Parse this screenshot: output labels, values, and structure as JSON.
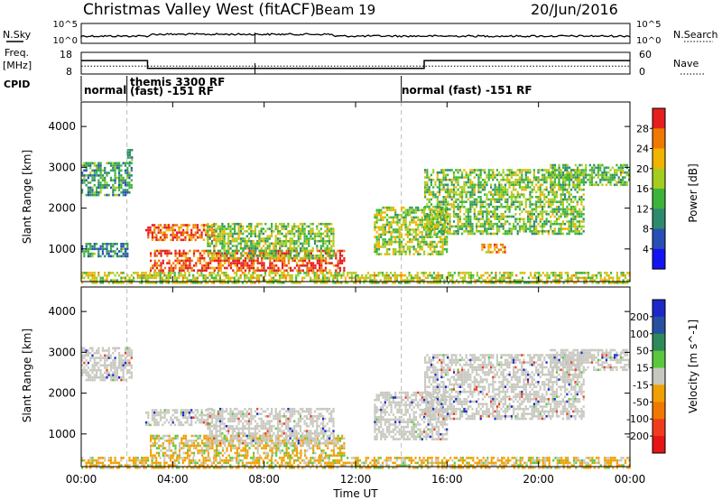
{
  "header": {
    "station": "Christmas Valley West (fitACF)",
    "beam": "Beam 19",
    "date": "20/Jun/2016"
  },
  "noise_panel": {
    "left_label": "N.Sky",
    "left_ticks": [
      "10^5",
      "10^0"
    ],
    "right_ticks": [
      "10^5",
      "10^0"
    ],
    "right_label": "N.Search"
  },
  "freq_panel": {
    "left_label_1": "Freq.",
    "left_label_2": "[MHz]",
    "left_ticks": [
      "18",
      "8"
    ],
    "right_ticks": [
      "60",
      "0"
    ],
    "right_label": "Nave",
    "freq_mhz_segments": [
      {
        "from_hour": 0.0,
        "to_hour": 2.9,
        "value": 14.2
      },
      {
        "from_hour": 2.9,
        "to_hour": 15.0,
        "value": 10.6
      },
      {
        "from_hour": 15.0,
        "to_hour": 24.0,
        "value": 14.2
      }
    ],
    "nave_dotted_level": 22
  },
  "cpid": {
    "label": "CPID",
    "segments": [
      {
        "line1": "normal",
        "line2": ""
      },
      {
        "line1": "themis 3300 RF",
        "line2": "(fast) -151 RF"
      },
      {
        "line1": "normal (fast) -151 RF",
        "line2": ""
      }
    ],
    "boundary_hours": [
      2.0,
      14.0
    ]
  },
  "chart_data": [
    {
      "type": "heatmap",
      "name": "power",
      "ylabel": "Slant Range [km]",
      "ylim": [
        200,
        4600
      ],
      "yticks": [
        "1000",
        "2000",
        "3000",
        "4000"
      ],
      "colorbar_label": "Power [dB]",
      "colorbar_ticks": [
        "4",
        "8",
        "12",
        "16",
        "20",
        "24",
        "28"
      ],
      "colorbar_colors": [
        "#1414f0",
        "#2850b4",
        "#2e8a6e",
        "#3cb43c",
        "#a5cd20",
        "#f0b400",
        "#f07800",
        "#e61e1e"
      ],
      "regions": [
        {
          "t": [
            0.0,
            2.2
          ],
          "r": [
            2350,
            3150
          ],
          "level": 0.35
        },
        {
          "t": [
            2.0,
            2.2
          ],
          "r": [
            3150,
            3500
          ],
          "level": 0.4
        },
        {
          "t": [
            2.8,
            5.8
          ],
          "r": [
            1250,
            1650
          ],
          "level": 0.9
        },
        {
          "t": [
            3.0,
            11.5
          ],
          "r": [
            500,
            1000
          ],
          "level": 0.95
        },
        {
          "t": [
            5.5,
            11.0
          ],
          "r": [
            800,
            1700
          ],
          "level": 0.5
        },
        {
          "t": [
            0.0,
            2.0
          ],
          "r": [
            850,
            1200
          ],
          "level": 0.3
        },
        {
          "t": [
            12.8,
            16.0
          ],
          "r": [
            900,
            2100
          ],
          "level": 0.55
        },
        {
          "t": [
            15.0,
            22.0
          ],
          "r": [
            1400,
            3000
          ],
          "level": 0.5
        },
        {
          "t": [
            17.5,
            18.5
          ],
          "r": [
            950,
            1150
          ],
          "level": 0.8
        },
        {
          "t": [
            20.5,
            24.0
          ],
          "r": [
            2600,
            3100
          ],
          "level": 0.45
        },
        {
          "t": [
            0.0,
            24.0
          ],
          "r": [
            200,
            450
          ],
          "level": 0.6
        }
      ]
    },
    {
      "type": "heatmap",
      "name": "velocity",
      "ylabel": "Slant Range [km]",
      "xlabel": "Time UT",
      "xlim": [
        0,
        24
      ],
      "xticks": [
        "00:00",
        "04:00",
        "08:00",
        "12:00",
        "16:00",
        "20:00",
        "00:00"
      ],
      "ylim": [
        200,
        4600
      ],
      "yticks": [
        "1000",
        "2000",
        "3000",
        "4000"
      ],
      "colorbar_label": "Velocity [m s^-1]",
      "colorbar_ticks": [
        "200",
        "100",
        "50",
        "15",
        "-15",
        "-50",
        "-100",
        "-200"
      ],
      "colorbar_colors": [
        "#1e28c8",
        "#2850a0",
        "#2e8a5a",
        "#5ac83c",
        "#c8c8c0",
        "#f0a000",
        "#f07800",
        "#f03c1e",
        "#e61414"
      ],
      "regions": [
        {
          "t": [
            0.0,
            2.2
          ],
          "r": [
            2350,
            3150
          ],
          "vel": 0
        },
        {
          "t": [
            2.8,
            5.8
          ],
          "r": [
            1250,
            1650
          ],
          "vel": 0
        },
        {
          "t": [
            3.0,
            11.5
          ],
          "r": [
            500,
            1000
          ],
          "vel": -40
        },
        {
          "t": [
            5.5,
            11.0
          ],
          "r": [
            800,
            1700
          ],
          "vel": 0
        },
        {
          "t": [
            12.8,
            16.0
          ],
          "r": [
            900,
            2100
          ],
          "vel": 5
        },
        {
          "t": [
            15.0,
            22.0
          ],
          "r": [
            1400,
            3000
          ],
          "vel": 0
        },
        {
          "t": [
            20.5,
            24.0
          ],
          "r": [
            2600,
            3100
          ],
          "vel": 0
        },
        {
          "t": [
            0.0,
            24.0
          ],
          "r": [
            200,
            450
          ],
          "vel": -30
        }
      ]
    }
  ]
}
